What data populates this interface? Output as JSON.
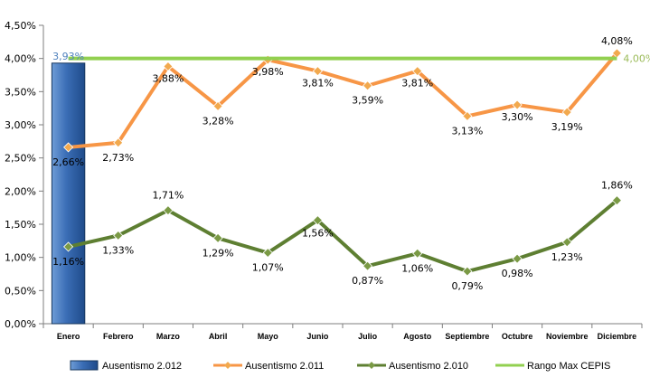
{
  "chart_data": {
    "type": "line",
    "categories": [
      "Enero",
      "Febrero",
      "Marzo",
      "Abril",
      "Mayo",
      "Junio",
      "Julio",
      "Agosto",
      "Septiembre",
      "Octubre",
      "Noviembre",
      "Diciembre"
    ],
    "ylim": [
      0,
      4.5
    ],
    "yticks": [
      "0,00%",
      "0,50%",
      "1,00%",
      "1,50%",
      "2,00%",
      "2,50%",
      "3,00%",
      "3,50%",
      "4,00%",
      "4,50%"
    ],
    "grid": false,
    "legend_position": "bottom",
    "series": [
      {
        "name": "Ausentismo 2.012",
        "kind": "bar",
        "color": "#2E5FA3",
        "values": [
          3.93,
          null,
          null,
          null,
          null,
          null,
          null,
          null,
          null,
          null,
          null,
          null
        ],
        "labels": [
          "3,93%",
          null,
          null,
          null,
          null,
          null,
          null,
          null,
          null,
          null,
          null,
          null
        ],
        "label_color": "#4F81BD"
      },
      {
        "name": "Ausentismo 2.011",
        "kind": "line",
        "color": "#F79646",
        "marker_color": "#F2A94E",
        "values": [
          2.66,
          2.73,
          3.88,
          3.28,
          3.98,
          3.81,
          3.59,
          3.81,
          3.13,
          3.3,
          3.19,
          4.08
        ],
        "labels": [
          "2,66%",
          "2,73%",
          "3,88%",
          "3,28%",
          "3,98%",
          "3,81%",
          "3,59%",
          "3,81%",
          "3,13%",
          "3,30%",
          "3,19%",
          "4,08%"
        ],
        "label_color": "#000000"
      },
      {
        "name": "Ausentismo 2.010",
        "kind": "line",
        "color": "#5E7F32",
        "marker_color": "#7A9A45",
        "values": [
          1.16,
          1.33,
          1.71,
          1.29,
          1.07,
          1.56,
          0.87,
          1.06,
          0.79,
          0.98,
          1.23,
          1.86
        ],
        "labels": [
          "1,16%",
          "1,33%",
          "1,71%",
          "1,29%",
          "1,07%",
          "1,56%",
          "0,87%",
          "1,06%",
          "0,79%",
          "0,98%",
          "1,23%",
          "1,86%"
        ],
        "label_color": "#000000"
      },
      {
        "name": "Rango Max CEPIS",
        "kind": "line",
        "color": "#92D050",
        "values": [
          4.0,
          4.0,
          4.0,
          4.0,
          4.0,
          4.0,
          4.0,
          4.0,
          4.0,
          4.0,
          4.0,
          4.0
        ],
        "labels": [
          null,
          null,
          null,
          null,
          null,
          null,
          null,
          null,
          null,
          null,
          null,
          "4,00%"
        ],
        "label_color": "#9BBB59"
      }
    ]
  }
}
